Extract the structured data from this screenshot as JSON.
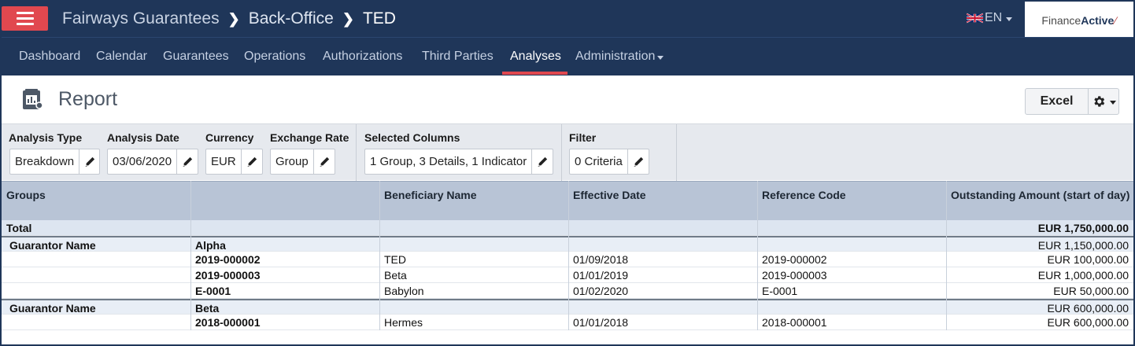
{
  "header": {
    "breadcrumbs": [
      "Fairways Guarantees",
      "Back-Office",
      "TED"
    ],
    "language": "EN",
    "brand_light": "Finance",
    "brand_bold": "Active"
  },
  "nav": {
    "items": [
      {
        "label": "Dashboard"
      },
      {
        "label": "Calendar"
      },
      {
        "label": "Guarantees"
      },
      {
        "label": "Operations"
      },
      {
        "label": "Authorizations"
      },
      {
        "label": "Third Parties"
      },
      {
        "label": "Analyses",
        "active": true
      },
      {
        "label": "Administration",
        "dropdown": true
      }
    ]
  },
  "report": {
    "title": "Report",
    "excel_label": "Excel"
  },
  "filters": {
    "analysis_type": {
      "label": "Analysis Type",
      "value": "Breakdown"
    },
    "analysis_date": {
      "label": "Analysis Date",
      "value": "03/06/2020"
    },
    "currency": {
      "label": "Currency",
      "value": "EUR"
    },
    "exchange_rate": {
      "label": "Exchange Rate",
      "value": "Group"
    },
    "selected_columns": {
      "label": "Selected Columns",
      "value": "1 Group, 3 Details, 1 Indicator"
    },
    "filter": {
      "label": "Filter",
      "value": "0 Criteria"
    }
  },
  "table": {
    "columns": [
      "Groups",
      "",
      "Beneficiary Name",
      "Effective Date",
      "Reference Code",
      "Outstanding Amount (start of day)"
    ],
    "rows": [
      {
        "type": "total",
        "cells": [
          "Total",
          "",
          "",
          "",
          "",
          "EUR 1,750,000.00"
        ]
      },
      {
        "type": "group",
        "cells": [
          "Guarantor Name",
          "Alpha",
          "",
          "",
          "",
          "EUR 1,150,000.00"
        ]
      },
      {
        "type": "detail",
        "cells": [
          "",
          "2019-000002",
          "TED",
          "01/09/2018",
          "2019-000002",
          "EUR 100,000.00"
        ]
      },
      {
        "type": "detail",
        "cells": [
          "",
          "2019-000003",
          "Beta",
          "01/01/2019",
          "2019-000003",
          "EUR 1,000,000.00"
        ]
      },
      {
        "type": "detail",
        "cells": [
          "",
          "E-0001",
          "Babylon",
          "01/02/2020",
          "E-0001",
          "EUR 50,000.00"
        ]
      },
      {
        "type": "group",
        "cells": [
          "Guarantor Name",
          "Beta",
          "",
          "",
          "",
          "EUR 600,000.00"
        ]
      },
      {
        "type": "detail",
        "cells": [
          "",
          "2018-000001",
          "Hermes",
          "01/01/2018",
          "2018-000001",
          "EUR 600,000.00"
        ]
      }
    ]
  },
  "colors": {
    "navy": "#1f3659",
    "accent_red": "#e1484f",
    "table_header": "#b8c4d6"
  }
}
